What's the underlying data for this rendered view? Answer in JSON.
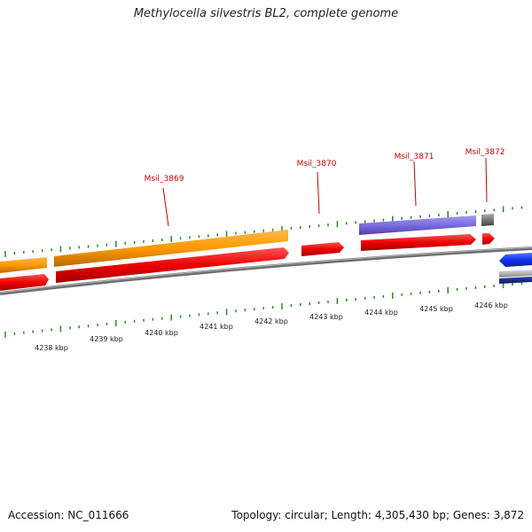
{
  "title": "Methylocella silvestris BL2, complete genome",
  "footer": {
    "accession_label": "Accession:",
    "accession": "NC_011666",
    "topology_label": "Topology:",
    "topology": "circular",
    "length_label": "Length:",
    "length": "4,305,430 bp",
    "genes_label": "Genes:",
    "genes": "3,872"
  },
  "colors": {
    "cds_forward": "#ee1111",
    "gene_orange": "#ff9900",
    "gene_purple": "#7a6be0",
    "gene_grey": "#777777",
    "reverse_blue": "#1133ee",
    "tick_green": "#2a8a2a",
    "label_red": "#cc0000",
    "backbone": "#888888"
  },
  "gene_labels": [
    "Msil_3869",
    "Msil_3870",
    "Msil_3871",
    "Msil_3872"
  ],
  "kbp_labels": [
    "4238 kbp",
    "4239 kbp",
    "4240 kbp",
    "4241 kbp",
    "4242 kbp",
    "4243 kbp",
    "4244 kbp",
    "4245 kbp",
    "4246 kbp"
  ]
}
